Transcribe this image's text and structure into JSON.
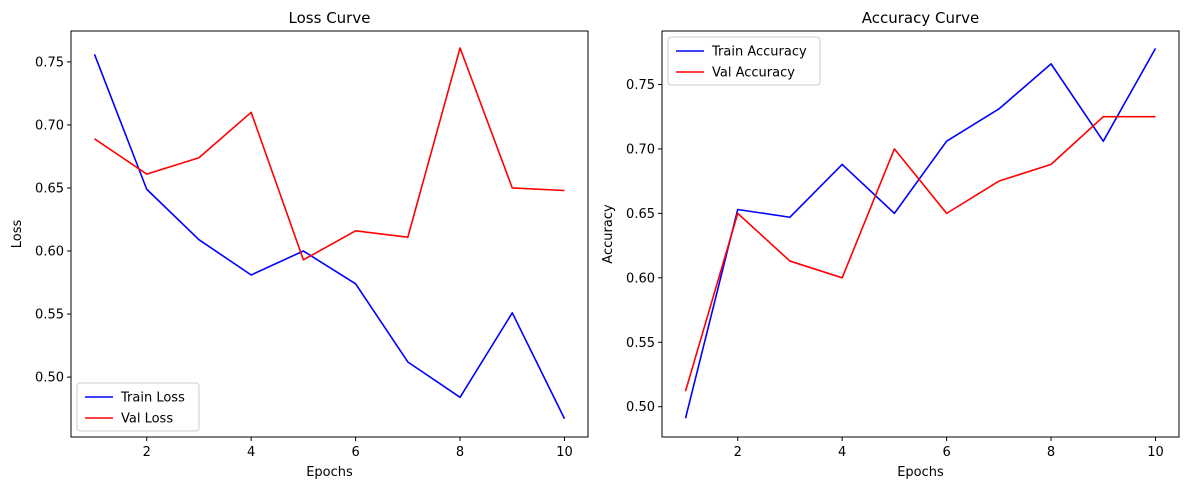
{
  "chart_data": [
    {
      "type": "line",
      "title": "Loss Curve",
      "xlabel": "Epochs",
      "ylabel": "Loss",
      "x": [
        1,
        2,
        3,
        4,
        5,
        6,
        7,
        8,
        9,
        10
      ],
      "xticks": [
        2,
        4,
        6,
        8,
        10
      ],
      "yticks": [
        0.5,
        0.55,
        0.6,
        0.65,
        0.7,
        0.75
      ],
      "xlim": [
        0.55,
        10.45
      ],
      "ylim": [
        0.4525,
        0.7745
      ],
      "grid": false,
      "legend": "lower-left",
      "series": [
        {
          "name": "Train Loss",
          "color": "#0000ff",
          "values": [
            0.756,
            0.649,
            0.609,
            0.581,
            0.6,
            0.574,
            0.512,
            0.484,
            0.551,
            0.467
          ]
        },
        {
          "name": "Val Loss",
          "color": "#ff0000",
          "values": [
            0.689,
            0.661,
            0.674,
            0.71,
            0.593,
            0.616,
            0.611,
            0.761,
            0.65,
            0.648
          ]
        }
      ]
    },
    {
      "type": "line",
      "title": "Accuracy Curve",
      "xlabel": "Epochs",
      "ylabel": "Accuracy",
      "x": [
        1,
        2,
        3,
        4,
        5,
        6,
        7,
        8,
        9,
        10
      ],
      "xticks": [
        2,
        4,
        6,
        8,
        10
      ],
      "yticks": [
        0.5,
        0.55,
        0.6,
        0.65,
        0.7,
        0.75
      ],
      "xlim": [
        0.55,
        10.45
      ],
      "ylim": [
        0.4765,
        0.7915
      ],
      "grid": false,
      "legend": "upper-left",
      "series": [
        {
          "name": "Train Accuracy",
          "color": "#0000ff",
          "values": [
            0.491,
            0.653,
            0.647,
            0.688,
            0.65,
            0.706,
            0.731,
            0.766,
            0.706,
            0.778
          ]
        },
        {
          "name": "Val Accuracy",
          "color": "#ff0000",
          "values": [
            0.512,
            0.65,
            0.613,
            0.6,
            0.7,
            0.65,
            0.675,
            0.688,
            0.725,
            0.725
          ]
        }
      ]
    }
  ]
}
